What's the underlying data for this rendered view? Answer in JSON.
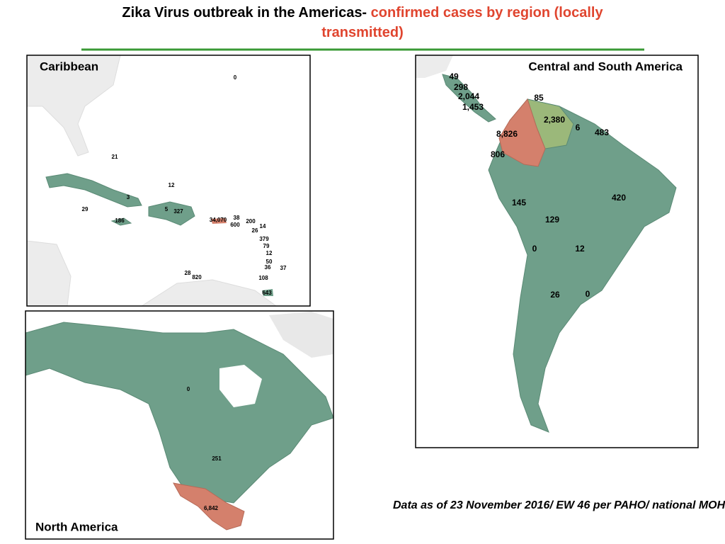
{
  "title": {
    "part1": "Zika Virus outbreak in the Americas-",
    "part2": "confirmed cases by region (locally transmitted)"
  },
  "panels": [
    {
      "title": "Caribbean",
      "labels": [
        "0",
        "21",
        "12",
        "3",
        "29",
        "5",
        "327",
        "186",
        "34,070",
        "38",
        "600",
        "200",
        "14",
        "26",
        "379",
        "79",
        "12",
        "50",
        "36",
        "37",
        "28",
        "820",
        "108",
        "643"
      ]
    },
    {
      "title": "North America",
      "labels": [
        "0",
        "251",
        "6,842"
      ]
    },
    {
      "title": "Central and South America",
      "labels": [
        "49",
        "298",
        "2,044",
        "1,453",
        "85",
        "2,380",
        "6",
        "483",
        "8,826",
        "806",
        "420",
        "145",
        "129",
        "0",
        "12",
        "26",
        "0"
      ]
    }
  ],
  "footer": "Data as of 23 November 2016/ EW 46 per PAHO/ national MOH"
}
